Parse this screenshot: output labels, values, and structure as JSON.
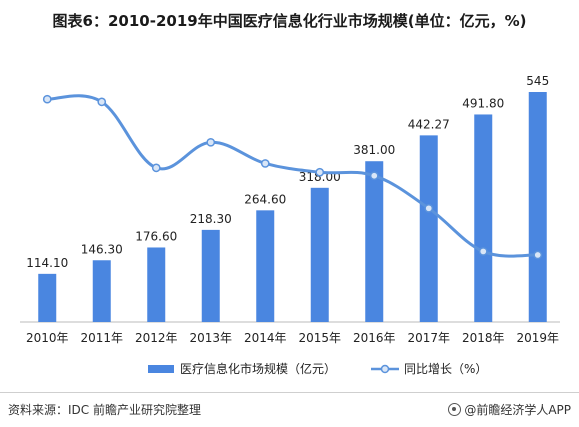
{
  "title": "图表6：2010-2019年中国医疗信息化行业市场规模(单位：亿元，%)",
  "chart_data": {
    "type": "bar",
    "categories": [
      "2010年",
      "2011年",
      "2012年",
      "2013年",
      "2014年",
      "2015年",
      "2016年",
      "2017年",
      "2018年",
      "2019年"
    ],
    "series": [
      {
        "name": "医疗信息化市场规模（亿元）",
        "type": "bar",
        "values": [
          114.1,
          146.3,
          176.6,
          218.3,
          264.6,
          318.0,
          381.0,
          442.27,
          491.8,
          545
        ],
        "labels": [
          "114.10",
          "146.30",
          "176.60",
          "218.30",
          "264.60",
          "318.00",
          "381.00",
          "442.27",
          "491.80",
          "545"
        ],
        "color": "#4a86e0"
      },
      {
        "name": "同比增长（%）",
        "type": "line",
        "values": [
          28.5,
          28.2,
          20.7,
          23.6,
          21.2,
          20.2,
          19.8,
          16.1,
          11.2,
          10.8
        ],
        "color": "#5b93dc"
      }
    ],
    "ylim": [
      0,
      600
    ],
    "y2lim": [
      0,
      40
    ],
    "legend": "bottom",
    "grid": false
  },
  "footer": {
    "source": "资料来源：IDC 前瞻产业研究院整理",
    "brand": "@前瞻经济学人APP"
  },
  "colors": {
    "bar": "#4a86e0",
    "line": "#5b93dc",
    "marker_fill": "#d9e6f7"
  }
}
